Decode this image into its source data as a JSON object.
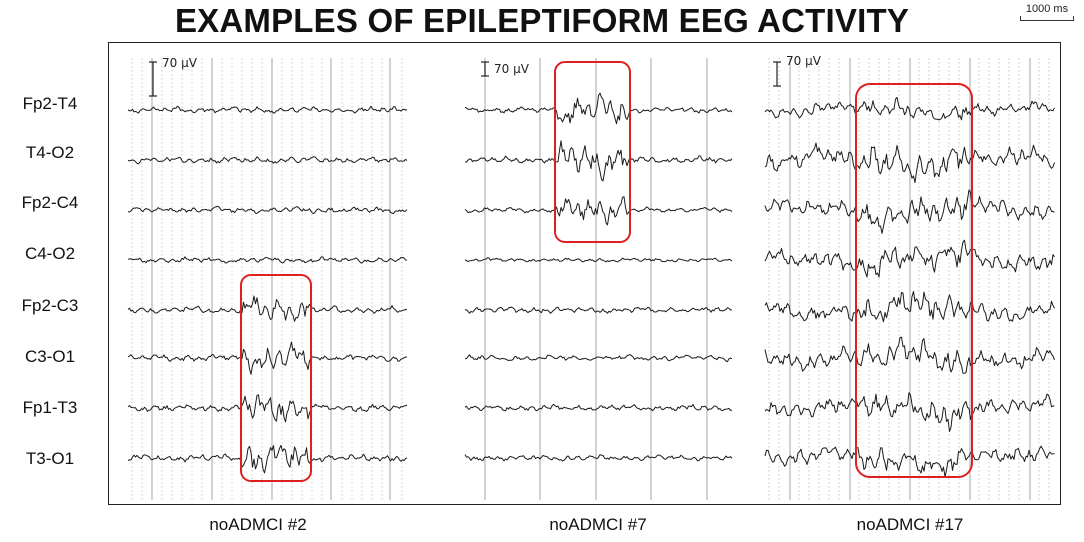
{
  "title": "EXAMPLES OF EPILEPTIFORM EEG ACTIVITY",
  "time_scale_label": "1000 ms",
  "channels": [
    "Fp2-T4",
    "T4-O2",
    "Fp2-C4",
    "C4-O2",
    "Fp2-C3",
    "C3-O1",
    "Fp1-T3",
    "T3-O1"
  ],
  "panels": [
    {
      "label": "noADMCI #2",
      "amplitude_label": "70 µV"
    },
    {
      "label": "noADMCI #7",
      "amplitude_label": "70 µV"
    },
    {
      "label": "noADMCI #17",
      "amplitude_label": "70 µV"
    }
  ],
  "colors": {
    "trace": "#1a1a1a",
    "highlight": "#e02020",
    "gridline": "#bbbbbb"
  }
}
